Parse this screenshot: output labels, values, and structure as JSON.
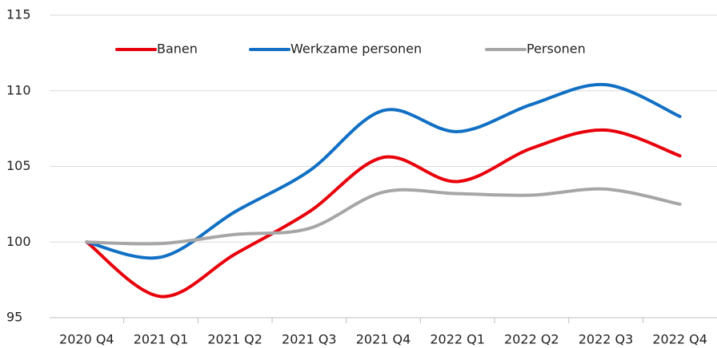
{
  "chart_data": {
    "type": "line",
    "categories": [
      "2020 Q4",
      "2021 Q1",
      "2021 Q2",
      "2021 Q3",
      "2021 Q4",
      "2022 Q1",
      "2022 Q2",
      "2022 Q3",
      "2022 Q4"
    ],
    "series": [
      {
        "name": "Banen",
        "color": "#e8000b",
        "values": [
          100,
          96.4,
          99.2,
          102.0,
          105.6,
          104.0,
          106.2,
          107.4,
          105.7
        ]
      },
      {
        "name": "Werkzame personen",
        "color": "#1170c4",
        "values": [
          100,
          99.0,
          102.0,
          104.7,
          108.7,
          107.3,
          109.1,
          110.4,
          108.3
        ]
      },
      {
        "name": "Personen",
        "color": "#a6a6a6",
        "values": [
          100,
          99.9,
          100.5,
          100.9,
          103.3,
          103.2,
          103.1,
          103.5,
          102.5
        ]
      }
    ],
    "ylim": [
      95,
      115
    ],
    "yticks": [
      95,
      100,
      105,
      110,
      115
    ],
    "grid": true,
    "smooth": true,
    "legend": "top"
  }
}
